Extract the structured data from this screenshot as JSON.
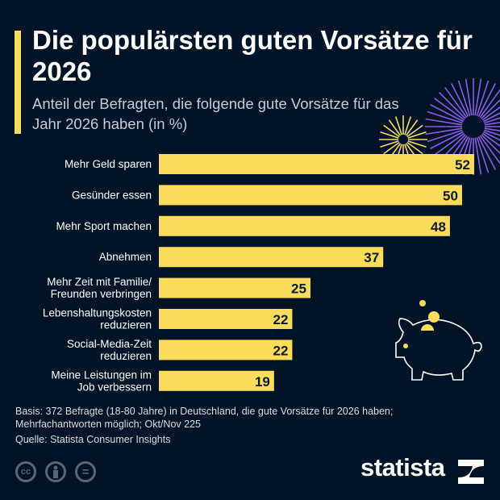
{
  "header": {
    "title": "Die populärsten guten Vorsätze für 2026",
    "subtitle": "Anteil der Befragten, die folgende gute Vorsätze für das Jahr 2026 haben (in %)"
  },
  "chart_data": {
    "type": "bar",
    "orientation": "horizontal",
    "categories": [
      "Mehr Geld sparen",
      "Gesünder essen",
      "Mehr Sport machen",
      "Abnehmen",
      "Mehr Zeit mit Familie/\nFreunden verbringen",
      "Lebenshaltungskosten\nreduzieren",
      "Social-Media-Zeit\nreduzieren",
      "Meine Leistungen im\nJob verbessern"
    ],
    "values": [
      52,
      50,
      48,
      37,
      25,
      22,
      22,
      19
    ],
    "xlim": [
      0,
      52
    ],
    "grid": false,
    "bar_color": "#fadb5a"
  },
  "footer": {
    "notes": "Basis: 372 Befragte (18-80 Jahre) in Deutschland, die gute Vorsätze für 2026 haben; Mehrfachantworten möglich; Okt/Nov 225",
    "source": "Quelle: Statista Consumer Insights",
    "license_icons": [
      "cc-icon",
      "by-icon",
      "nd-icon"
    ],
    "license_labels": {
      "cc": "cc",
      "nd": "="
    },
    "logo": "statista"
  },
  "colors": {
    "background": "#001327",
    "accent": "#fadb5a",
    "firework_purple": "#8e5ce6"
  }
}
